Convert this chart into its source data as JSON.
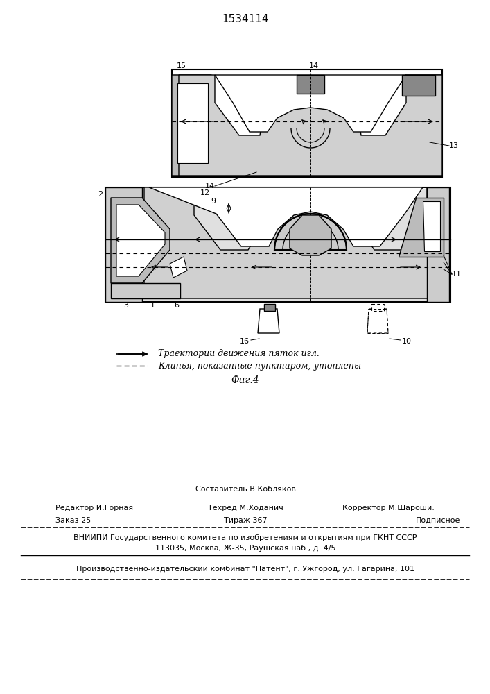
{
  "patent_number": "1534114",
  "fig_label": "Фиг.4",
  "legend_line1": "—→ Траектории движения пяток игл.",
  "legend_line2": "- - - - Клинья, показанные пунктиром-утоплены",
  "editor_line": "Редактор И.Горная",
  "composer_line": "Составитель В.Кобляков",
  "techred_line": "Техред М.Ходанич",
  "corrector_line": "Корректор М.Шароши.",
  "order_line": "Заказ 25",
  "tirazh_line": "Тираж 367",
  "podpis_line": "Подписное",
  "vnipi_line": "ВНИИПИ Государственного комитета по изобретениям и открытиям при ГКНТ СССР",
  "address_line": "113035, Москва, Ж-35, Раушская наб., д. 4/5",
  "patent_line": "Производственно-издательский комбинат \"Патент\", г. Ужгород, ул. Гагарина, 101",
  "bg_color": "#ffffff",
  "line_color": "#000000"
}
